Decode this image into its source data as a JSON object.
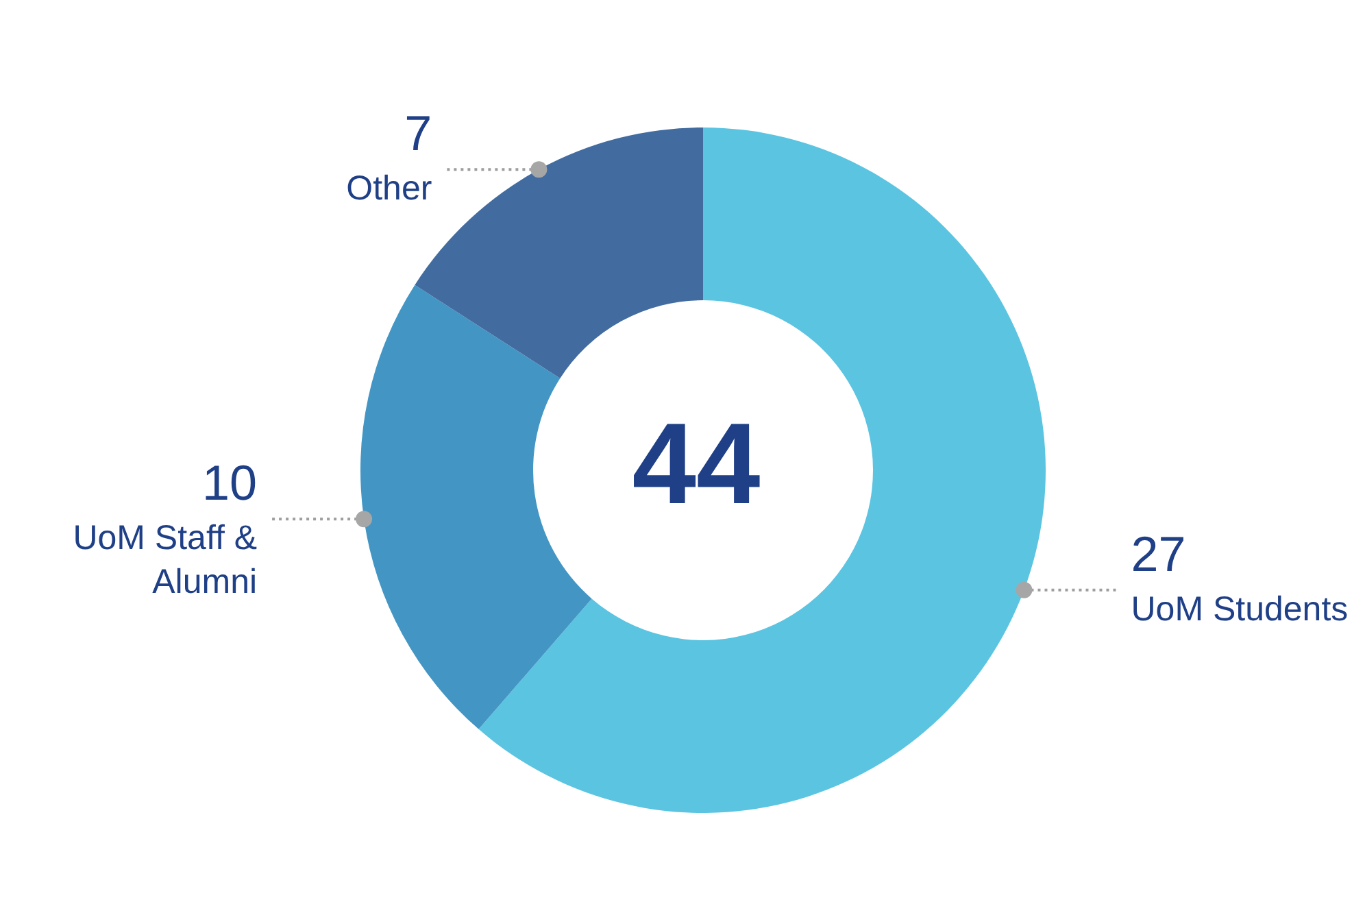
{
  "chart_data": {
    "type": "donut",
    "categories": [
      "UoM Students",
      "UoM Staff & Alumni",
      "Other"
    ],
    "values": [
      27,
      10,
      7
    ],
    "colors": [
      "#5bc4e1",
      "#4396c4",
      "#426b9f"
    ],
    "data_labels": true,
    "annotations": [
      "44"
    ]
  }
}
